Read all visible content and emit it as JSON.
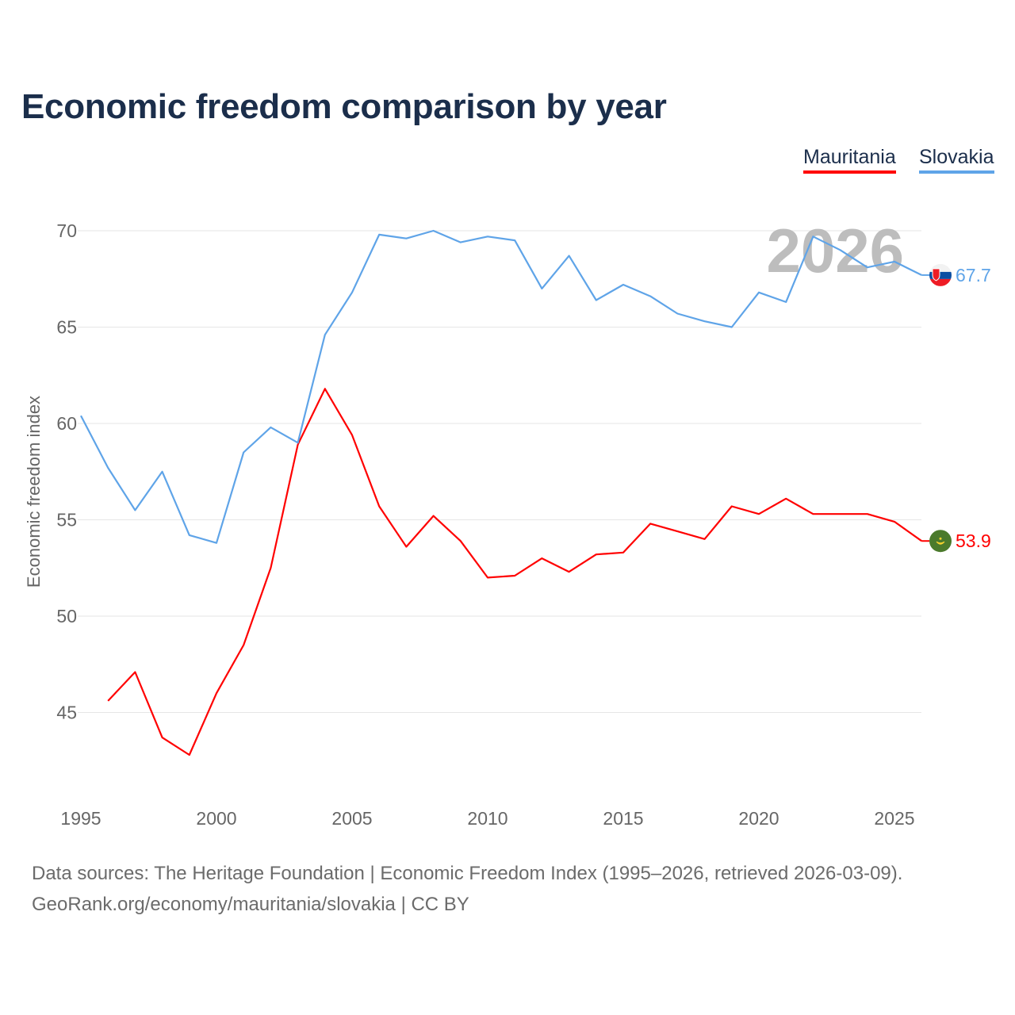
{
  "chart_data": {
    "type": "line",
    "title": "Economic freedom comparison by year",
    "xlabel": "",
    "ylabel": "Economic freedom index",
    "xlim": [
      1995,
      2026
    ],
    "ylim": [
      40.5,
      72
    ],
    "yticks": [
      45,
      50,
      55,
      60,
      65,
      70
    ],
    "xticks": [
      1995,
      2000,
      2005,
      2010,
      2015,
      2020,
      2025
    ],
    "grid": true,
    "legend_position": "top-right",
    "current_year_label": "2026",
    "series": [
      {
        "name": "Mauritania",
        "color": "#ff0000",
        "end_label": "53.9",
        "x": [
          1996,
          1997,
          1998,
          1999,
          2000,
          2001,
          2002,
          2003,
          2004,
          2005,
          2006,
          2007,
          2008,
          2009,
          2010,
          2011,
          2012,
          2013,
          2014,
          2015,
          2016,
          2017,
          2018,
          2019,
          2020,
          2021,
          2022,
          2023,
          2024,
          2025,
          2026
        ],
        "values": [
          45.6,
          47.1,
          43.7,
          42.8,
          46.0,
          48.5,
          52.5,
          58.9,
          61.8,
          59.4,
          55.7,
          53.6,
          55.2,
          53.9,
          52.0,
          52.1,
          53.0,
          52.3,
          53.2,
          53.3,
          54.8,
          54.4,
          54.0,
          55.7,
          55.3,
          56.1,
          55.3,
          55.3,
          55.3,
          54.9,
          53.9
        ]
      },
      {
        "name": "Slovakia",
        "color": "#5fa4e8",
        "end_label": "67.7",
        "x": [
          1995,
          1996,
          1997,
          1998,
          1999,
          2000,
          2001,
          2002,
          2003,
          2004,
          2005,
          2006,
          2007,
          2008,
          2009,
          2010,
          2011,
          2012,
          2013,
          2014,
          2015,
          2016,
          2017,
          2018,
          2019,
          2020,
          2021,
          2022,
          2023,
          2024,
          2025,
          2026
        ],
        "values": [
          60.4,
          57.7,
          55.5,
          57.5,
          54.2,
          53.8,
          58.5,
          59.8,
          59.0,
          64.6,
          66.8,
          69.8,
          69.6,
          70.0,
          69.4,
          69.7,
          69.5,
          67.0,
          68.7,
          66.4,
          67.2,
          66.6,
          65.7,
          65.3,
          65.0,
          66.8,
          66.3,
          69.7,
          69.0,
          68.1,
          68.4,
          67.7
        ]
      }
    ]
  },
  "legend": {
    "mauritania": "Mauritania",
    "slovakia": "Slovakia"
  },
  "footer": {
    "line1": "Data sources: The Heritage Foundation | Economic Freedom Index (1995–2026, retrieved 2026-03-09).",
    "line2": "GeoRank.org/economy/mauritania/slovakia | CC BY"
  }
}
